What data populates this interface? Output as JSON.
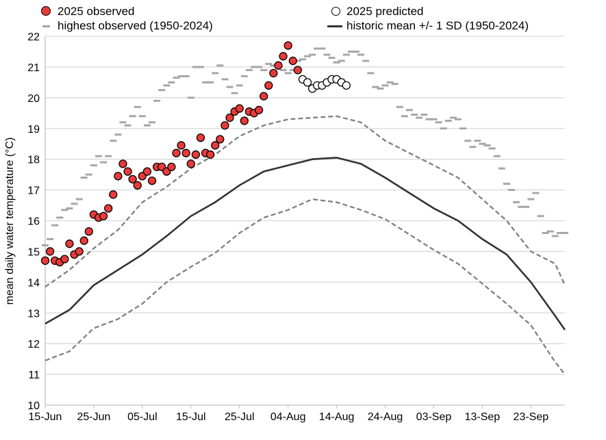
{
  "chart_data": {
    "type": "line",
    "ylabel": "mean daily water temperature (°C)",
    "xlabel": "",
    "ylim": [
      10,
      22
    ],
    "yticks": [
      10,
      11,
      12,
      13,
      14,
      15,
      16,
      17,
      18,
      19,
      20,
      21,
      22
    ],
    "grid": "horizontal",
    "x_start": "15-Jun",
    "x_end": "30-Sep",
    "xtick_labels": [
      "15-Jun",
      "25-Jun",
      "05-Jul",
      "15-Jul",
      "25-Jul",
      "04-Aug",
      "14-Aug",
      "24-Aug",
      "03-Sep",
      "13-Sep",
      "23-Sep"
    ],
    "legend_placement": "top",
    "legend": {
      "observed": "2025 observed",
      "predicted": "2025 predicted",
      "highest": "highest observed (1950-2024)",
      "mean": "historic mean +/- 1 SD (1950-2024)"
    },
    "colors": {
      "observed": "#e83a3a",
      "highest": "#a6a6a6",
      "mean": "#333333",
      "sd": "#7f7f7f"
    },
    "series": {
      "observed_2025": {
        "start": "15-Jun",
        "values": [
          14.7,
          15.0,
          14.7,
          14.65,
          14.75,
          15.25,
          14.9,
          15.0,
          15.35,
          15.65,
          16.2,
          16.1,
          16.15,
          16.4,
          16.85,
          17.45,
          17.85,
          17.6,
          17.35,
          17.15,
          17.45,
          17.6,
          17.3,
          17.75,
          17.75,
          17.6,
          17.75,
          18.2,
          18.45,
          18.2,
          17.85,
          18.15,
          18.7,
          18.2,
          18.15,
          18.45,
          18.65,
          19.1,
          19.35,
          19.55,
          19.65,
          19.25,
          19.55,
          19.5,
          19.6,
          20.05,
          20.4,
          20.8,
          21.05,
          21.35,
          21.7,
          21.2,
          20.9
        ]
      },
      "predicted_2025": {
        "start": "07-Aug",
        "values": [
          20.6,
          20.5,
          20.3,
          20.4,
          20.4,
          20.5,
          20.6,
          20.6,
          20.5,
          20.4
        ]
      },
      "highest_1950_2024": {
        "start": "15-Jun",
        "values": [
          15.2,
          15.4,
          15.85,
          16.1,
          16.35,
          16.4,
          16.55,
          16.7,
          17.4,
          17.5,
          17.8,
          18.1,
          17.9,
          18.1,
          18.6,
          18.8,
          19.2,
          19.1,
          19.4,
          19.7,
          19.4,
          19.1,
          19.2,
          19.9,
          20.25,
          20.4,
          20.5,
          20.65,
          20.7,
          20.7,
          20.0,
          21.0,
          21.0,
          20.5,
          20.5,
          20.8,
          21.05,
          20.6,
          20.35,
          20.15,
          20.4,
          20.7,
          20.9,
          21.0,
          21.0,
          20.9,
          21.1,
          21.05,
          21.1,
          20.9,
          20.8,
          20.9,
          21.2,
          21.25,
          21.35,
          21.4,
          21.6,
          21.6,
          21.4,
          21.3,
          21.15,
          21.2,
          21.4,
          21.5,
          21.5,
          21.4,
          21.2,
          20.8,
          20.35,
          20.3,
          20.4,
          20.5,
          20.45,
          19.7,
          19.4,
          19.6,
          19.45,
          19.35,
          19.45,
          19.3,
          19.3,
          19.2,
          19.0,
          19.25,
          19.35,
          19.3,
          19.0,
          18.6,
          18.4,
          18.6,
          18.5,
          18.45,
          18.35,
          18.1,
          17.7,
          17.2,
          17.0,
          16.6,
          16.45,
          16.45,
          16.7,
          16.9,
          16.15,
          15.6,
          15.65,
          15.5,
          15.6,
          15.6
        ]
      },
      "mean_days": [
        0,
        5,
        10,
        15,
        20,
        25,
        30,
        35,
        40,
        45,
        50,
        55,
        60,
        65,
        70,
        75,
        80,
        85,
        90,
        95,
        100,
        105,
        107
      ],
      "mean": [
        12.65,
        13.1,
        13.9,
        14.4,
        14.9,
        15.5,
        16.15,
        16.6,
        17.15,
        17.6,
        17.8,
        18.0,
        18.05,
        17.85,
        17.4,
        16.9,
        16.4,
        16.0,
        15.4,
        14.9,
        14.0,
        12.9,
        12.45
      ],
      "mean_plus_sd": [
        13.85,
        14.4,
        15.1,
        15.7,
        16.6,
        17.1,
        17.7,
        18.15,
        18.75,
        19.1,
        19.3,
        19.35,
        19.4,
        19.2,
        18.6,
        18.2,
        17.8,
        17.4,
        16.7,
        16.0,
        15.0,
        14.6,
        13.9
      ],
      "mean_minus_sd": [
        11.45,
        11.75,
        12.5,
        12.8,
        13.3,
        14.0,
        14.5,
        14.95,
        15.6,
        16.1,
        16.35,
        16.7,
        16.6,
        16.35,
        16.05,
        15.55,
        15.05,
        14.6,
        13.95,
        13.3,
        12.6,
        11.4,
        11.0
      ]
    }
  }
}
